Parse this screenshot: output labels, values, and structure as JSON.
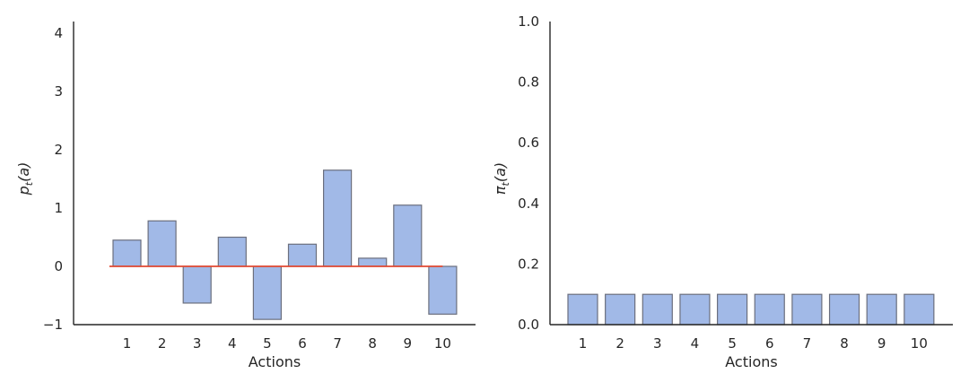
{
  "chart_data": [
    {
      "type": "bar",
      "title": "",
      "xlabel": "Actions",
      "ylabel_base": "p",
      "ylabel_sub": "t",
      "ylabel_arg": "(a)",
      "categories": [
        "1",
        "2",
        "3",
        "4",
        "5",
        "6",
        "7",
        "8",
        "9",
        "10"
      ],
      "values": [
        0.45,
        0.78,
        -0.63,
        0.5,
        -0.91,
        0.38,
        1.65,
        0.14,
        1.05,
        -0.82
      ],
      "ylim": [
        -1,
        4.2
      ],
      "yticks": [
        -1,
        0,
        1,
        2,
        3,
        4
      ],
      "ytick_labels": [
        "−1",
        "0",
        "1",
        "2",
        "3",
        "4"
      ],
      "grid": false,
      "baseline": {
        "value": 0,
        "x_from": -0.5,
        "x_to": 9.0,
        "color": "#e24a33"
      },
      "bar_color": "#a1b9e7",
      "bar_edge_color": "#6b6f7e"
    },
    {
      "type": "bar",
      "title": "",
      "xlabel": "Actions",
      "ylabel_base": "π",
      "ylabel_sub": "t",
      "ylabel_arg": "(a)",
      "categories": [
        "1",
        "2",
        "3",
        "4",
        "5",
        "6",
        "7",
        "8",
        "9",
        "10"
      ],
      "values": [
        0.1,
        0.1,
        0.1,
        0.1,
        0.1,
        0.1,
        0.1,
        0.1,
        0.1,
        0.1
      ],
      "ylim": [
        0,
        1
      ],
      "yticks": [
        0,
        0.2,
        0.4,
        0.6,
        0.8,
        1.0
      ],
      "ytick_labels": [
        "0.0",
        "0.2",
        "0.4",
        "0.6",
        "0.8",
        "1.0"
      ],
      "grid": false,
      "bar_color": "#a1b9e7",
      "bar_edge_color": "#6b6f7e"
    }
  ]
}
